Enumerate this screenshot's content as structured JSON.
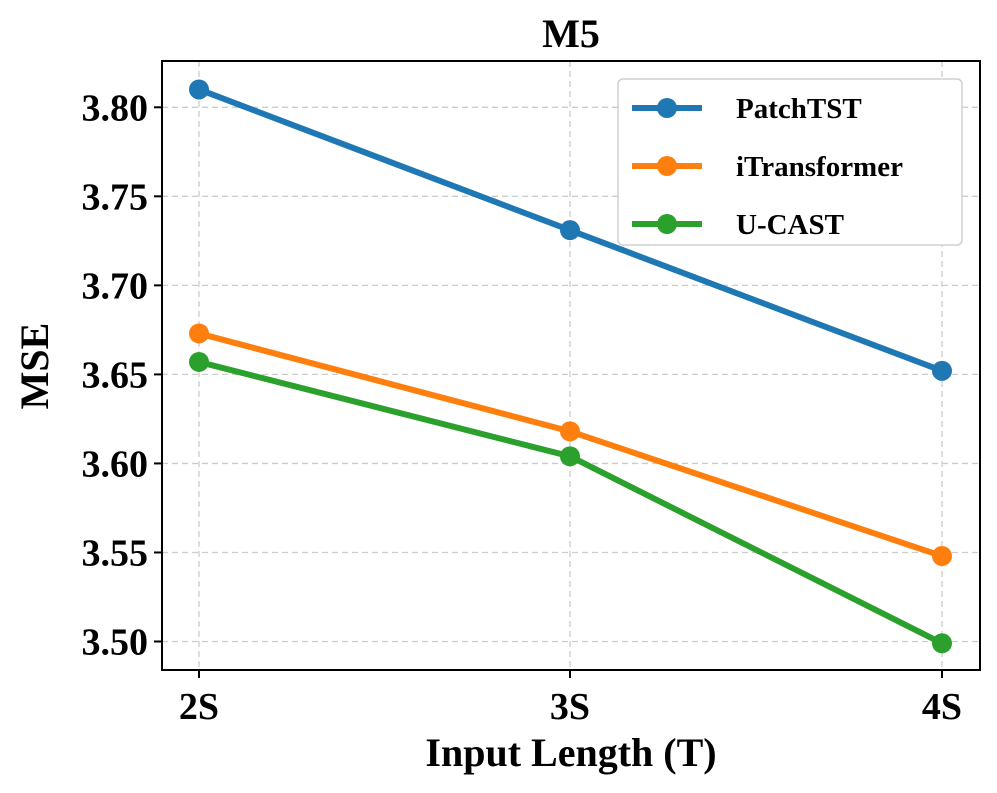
{
  "chart_data": {
    "type": "line",
    "title": "M5",
    "xlabel": "Input Length (T)",
    "ylabel": "MSE",
    "categories": [
      "2S",
      "3S",
      "4S"
    ],
    "ylim": [
      3.484,
      3.826
    ],
    "yticks": [
      "3.50",
      "3.55",
      "3.60",
      "3.65",
      "3.70",
      "3.75",
      "3.80"
    ],
    "grid": true,
    "legend_position": "top-right",
    "series": [
      {
        "name": "PatchTST",
        "color": "#1f77b4",
        "values": [
          3.81,
          3.731,
          3.652
        ]
      },
      {
        "name": "iTransformer",
        "color": "#ff7f0e",
        "values": [
          3.673,
          3.618,
          3.548
        ]
      },
      {
        "name": "U-CAST",
        "color": "#2ca02c",
        "values": [
          3.657,
          3.604,
          3.499
        ]
      }
    ]
  }
}
